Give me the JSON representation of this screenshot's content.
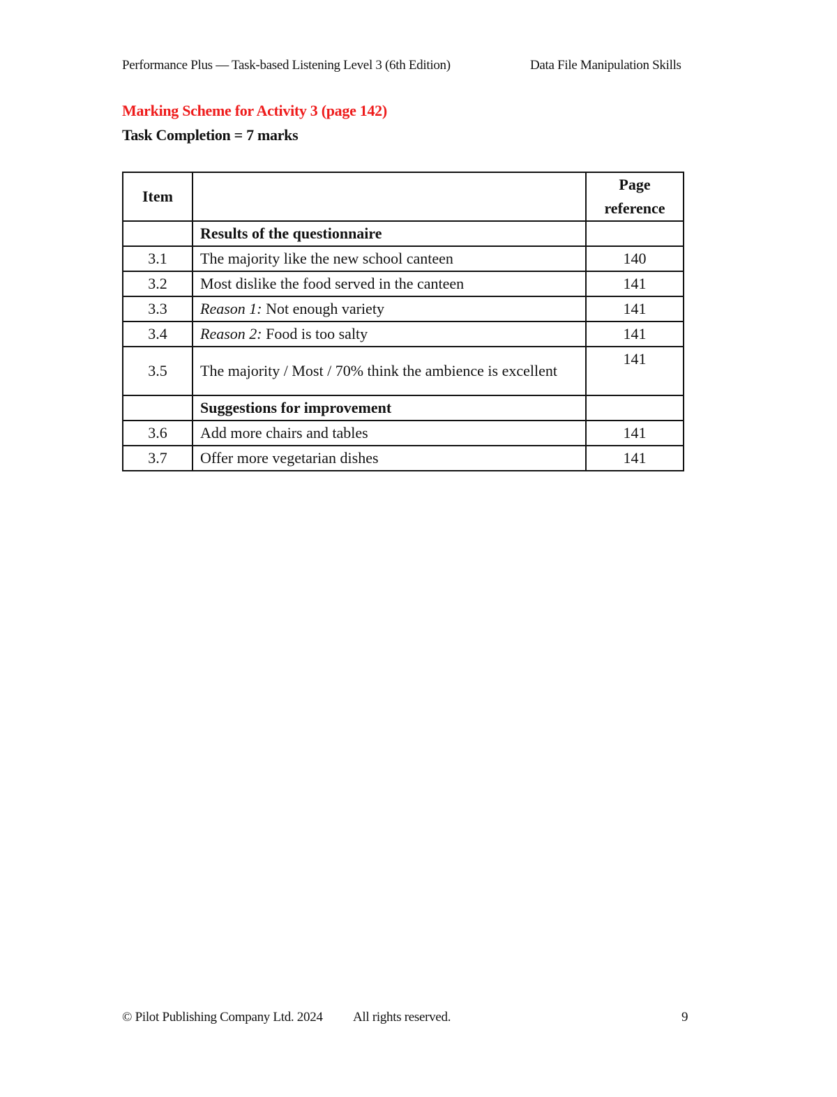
{
  "header": {
    "left": "Performance Plus — Task-based Listening Level 3 (6th Edition)",
    "right": "Data File Manipulation Skills"
  },
  "title": "Marking Scheme for Activity 3 (page 142)",
  "subtitle": "Task Completion = 7 marks",
  "table": {
    "columns": [
      "Item",
      "",
      "Page reference"
    ],
    "rows": [
      {
        "item": "",
        "prefix": "",
        "text": "Results of the questionnaire",
        "page": "",
        "section": true
      },
      {
        "item": "3.1",
        "prefix": "",
        "text": "The majority like the new school canteen",
        "page": "140"
      },
      {
        "item": "3.2",
        "prefix": "",
        "text": "Most dislike the food served in the canteen",
        "page": "141"
      },
      {
        "item": "3.3",
        "prefix": "Reason 1:",
        "text": " Not enough variety",
        "page": "141"
      },
      {
        "item": "3.4",
        "prefix": "Reason 2:",
        "text": " Food is too salty",
        "page": "141"
      },
      {
        "item": "3.5",
        "prefix": "",
        "text": "The majority / Most / 70% think the ambience is excellent",
        "page": "141"
      },
      {
        "item": "",
        "prefix": "",
        "text": "Suggestions for improvement",
        "page": "",
        "section": true
      },
      {
        "item": "3.6",
        "prefix": "",
        "text": "Add more chairs and tables",
        "page": "141"
      },
      {
        "item": "3.7",
        "prefix": "",
        "text": "Offer more vegetarian dishes",
        "page": "141"
      }
    ]
  },
  "footer": {
    "copyright": "© Pilot Publishing Company Ltd. 2024",
    "rights": "All rights reserved.",
    "page_number": "9"
  }
}
